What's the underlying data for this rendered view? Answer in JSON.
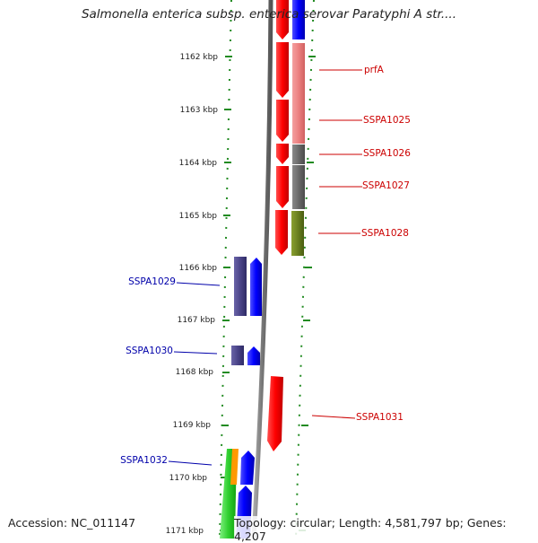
{
  "title": "Salmonella enterica subsp. enterica serovar Paratyphi A str....",
  "ticks": [
    "1162 kbp",
    "1163 kbp",
    "1164 kbp",
    "1165 kbp",
    "1166 kbp",
    "1167 kbp",
    "1168 kbp",
    "1169 kbp",
    "1170 kbp",
    "1171 kbp"
  ],
  "gene_labels_right": [
    "prfA",
    "SSPA1025",
    "SSPA1026",
    "SSPA1027",
    "SSPA1028",
    "SSPA1031"
  ],
  "gene_labels_left": [
    "SSPA1029",
    "SSPA1030",
    "SSPA1032"
  ],
  "footer": {
    "accession": "Accession: NC_011147",
    "summary": "Topology: circular; Length: 4,581,797 bp; Genes: 4,207"
  },
  "colors": {
    "forward_cds": "#ff0000",
    "reverse_cds": "#0000ff",
    "red_label": "#cc0000",
    "blue_label": "#0000aa",
    "backbone": "#888888",
    "dotted_ring": "#228b22"
  }
}
